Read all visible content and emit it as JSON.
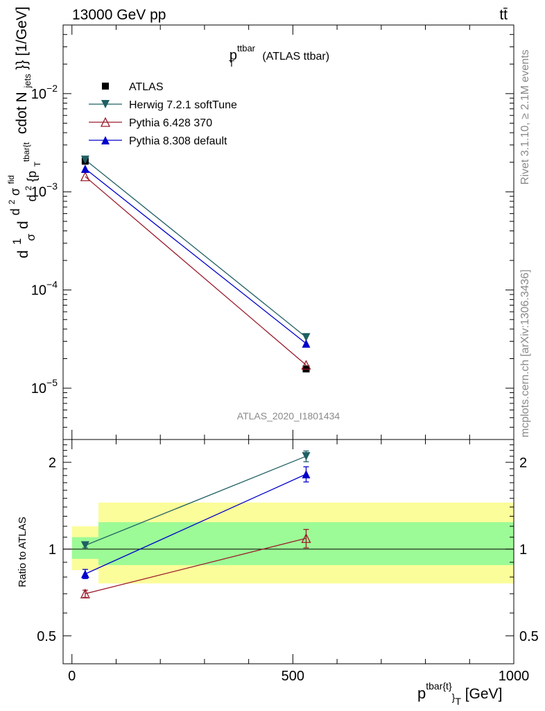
{
  "header": {
    "left": "13000 GeV pp",
    "right": "tt̄"
  },
  "side_text": {
    "rivet": "Rivet 3.1.10, ≥ 2.1M events",
    "mcplots": "mcplots.cern.ch [arXiv:1306.3436]"
  },
  "chart_data": [
    {
      "type": "line",
      "title_main": "p",
      "title_sup": "ttbar",
      "title_sub": "T",
      "title_rest": " (ATLAS ttbar)",
      "ylabel": "d\\frac{1}{\\sigma}d\\frac{d^2\\sigma^{fid}}{d^2 {p_T^{tbar{t}}} cdot N_{jets}}} [1/GeV]",
      "ylabel_parts": [
        "d",
        "1",
        "σ",
        "d",
        "d",
        "2",
        "σ",
        "fid",
        "d",
        "2",
        "{p",
        "T",
        "tbar{t",
        "cdot N",
        "jets",
        "}} [1/GeV]"
      ],
      "yscale": "log",
      "ylim": [
        3e-06,
        0.05
      ],
      "yticks": [
        {
          "value": 1e-05,
          "base": "10",
          "exp": "−5"
        },
        {
          "value": 0.0001,
          "base": "10",
          "exp": "−4"
        },
        {
          "value": 0.001,
          "base": "10",
          "exp": "−3"
        },
        {
          "value": 0.01,
          "base": "10",
          "exp": "−2"
        }
      ],
      "xlim": [
        -20,
        1000
      ],
      "watermark": "ATLAS_2020_I1801434",
      "legend_position": "top-left",
      "series": [
        {
          "name": "ATLAS",
          "color": "#000000",
          "marker": "square",
          "x": [
            30,
            530
          ],
          "y": [
            0.00205,
            1.57e-05
          ]
        },
        {
          "name": "Herwig 7.2.1 softTune",
          "color": "#1f5f63",
          "marker": "triangle-down",
          "x": [
            30,
            530
          ],
          "y": [
            0.00212,
            3.3e-05
          ]
        },
        {
          "name": "Pythia 6.428 370",
          "color": "#9b1a2a",
          "marker": "triangle-up-open",
          "x": [
            30,
            530
          ],
          "y": [
            0.00143,
            1.72e-05
          ]
        },
        {
          "name": "Pythia 8.308 default",
          "color": "#0000cc",
          "marker": "triangle-up",
          "x": [
            30,
            530
          ],
          "y": [
            0.00172,
            2.85e-05
          ]
        }
      ]
    },
    {
      "type": "line",
      "ylabel": "Ratio to ATLAS",
      "xlabel_main": "p",
      "xlabel_sup": "tbar{t}",
      "xlabel_sub": "}",
      "xlabel_sub2": "T",
      "xlabel_rest": " [GeV]",
      "yscale": "log",
      "ylim": [
        0.4,
        2.4
      ],
      "yticks": [
        0.5,
        1,
        2
      ],
      "ytick_labels": [
        "0.5",
        "1",
        "2"
      ],
      "xlim": [
        -20,
        1000
      ],
      "xticks": [
        0,
        500,
        1000
      ],
      "xtick_labels": [
        "0",
        "500",
        "1000"
      ],
      "bands": [
        {
          "x0": 0,
          "x1": 60,
          "yellow": [
            0.845,
            1.2
          ],
          "green": [
            0.925,
            1.1
          ]
        },
        {
          "x0": 60,
          "x1": 1000,
          "yellow": [
            0.76,
            1.45
          ],
          "green": [
            0.88,
            1.24
          ]
        }
      ],
      "band_colors": {
        "yellow": "#fbfd9a",
        "green": "#9cfb96"
      },
      "series": [
        {
          "name": "Herwig 7.2.1 softTune",
          "color": "#1f5f63",
          "marker": "triangle-down",
          "x": [
            30,
            530
          ],
          "y": [
            1.03,
            2.1
          ],
          "err": [
            0.02,
            0.09
          ]
        },
        {
          "name": "Pythia 6.428 370",
          "color": "#9b1a2a",
          "marker": "triangle-up-open",
          "x": [
            30,
            530
          ],
          "y": [
            0.7,
            1.09
          ],
          "err": [
            0.02,
            0.08
          ]
        },
        {
          "name": "Pythia 8.308 default",
          "color": "#0000cc",
          "marker": "triangle-up",
          "x": [
            30,
            530
          ],
          "y": [
            0.82,
            1.82
          ],
          "err": [
            0.03,
            0.11
          ]
        }
      ]
    }
  ]
}
